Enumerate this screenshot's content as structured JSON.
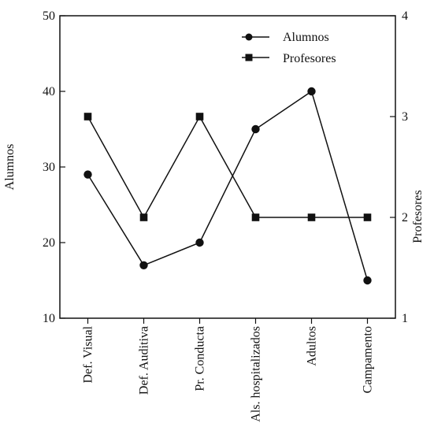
{
  "chart_data": {
    "type": "line",
    "categories": [
      "Def. Visual",
      "Def. Auditiva",
      "Pr. Conducta",
      "Als. hospitalizados",
      "Adultos",
      "Campamento"
    ],
    "series": [
      {
        "name": "Alumnos",
        "axis": "left",
        "marker": "circle",
        "values": [
          29,
          17,
          20,
          35,
          40,
          15
        ]
      },
      {
        "name": "Profesores",
        "axis": "right",
        "marker": "square",
        "values": [
          3,
          2,
          3,
          2,
          2,
          2
        ]
      }
    ],
    "ylabel": "Alumnos",
    "ylabel_right": "Profesores",
    "ylim": [
      10,
      50
    ],
    "ylim_right": [
      1,
      4
    ],
    "yticks": [
      10,
      20,
      30,
      40,
      50
    ],
    "yticks_right": [
      1,
      2,
      3,
      4
    ],
    "grid": false,
    "legend_position": "top-right",
    "colors": {
      "line": "#111111",
      "background": "#ffffff"
    }
  }
}
